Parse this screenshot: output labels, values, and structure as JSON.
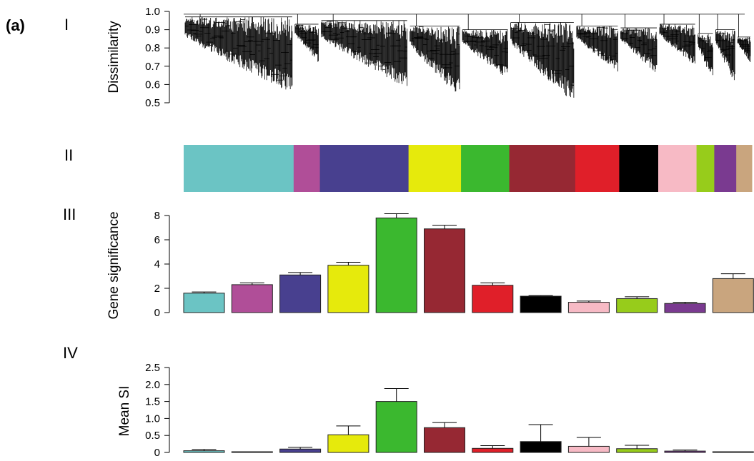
{
  "figure_label": "(a)",
  "panel_labels": [
    "I",
    "II",
    "III",
    "IV"
  ],
  "module_colors": [
    "#6bc4c4",
    "#b04e98",
    "#48408f",
    "#e6ea0c",
    "#3bb82f",
    "#962833",
    "#e01f29",
    "#000000",
    "#f7bac5",
    "#97cc1b",
    "#7a3a90",
    "#c9a57e"
  ],
  "chart_data": [
    {
      "type": "dendrogram",
      "panel": "I",
      "ylabel": "Dissimilarity",
      "ylim": [
        0.5,
        1.0
      ],
      "yticks": [
        "0.5",
        "0.6",
        "0.7",
        "0.8",
        "0.9",
        "1.0"
      ],
      "clusters": [
        {
          "color": "#6bc4c4",
          "merge_height": 0.97,
          "min_leaf": 0.55
        },
        {
          "color": "#b04e98",
          "merge_height": 0.93,
          "min_leaf": 0.72
        },
        {
          "color": "#48408f",
          "merge_height": 0.95,
          "min_leaf": 0.58
        },
        {
          "color": "#e6ea0c",
          "merge_height": 0.92,
          "min_leaf": 0.53
        },
        {
          "color": "#3bb82f",
          "merge_height": 0.9,
          "min_leaf": 0.63
        },
        {
          "color": "#962833",
          "merge_height": 0.94,
          "min_leaf": 0.5
        },
        {
          "color": "#e01f29",
          "merge_height": 0.92,
          "min_leaf": 0.67
        },
        {
          "color": "#000000",
          "merge_height": 0.91,
          "min_leaf": 0.66
        },
        {
          "color": "#f7bac5",
          "merge_height": 0.93,
          "min_leaf": 0.7
        },
        {
          "color": "#97cc1b",
          "merge_height": 0.88,
          "min_leaf": 0.62
        },
        {
          "color": "#7a3a90",
          "merge_height": 0.9,
          "min_leaf": 0.61
        },
        {
          "color": "#c9a57e",
          "merge_height": 0.86,
          "min_leaf": 0.72
        }
      ]
    },
    {
      "type": "color_strip",
      "panel": "II",
      "segments": [
        {
          "color": "#6bc4c4",
          "size": 155
        },
        {
          "color": "#b04e98",
          "size": 37
        },
        {
          "color": "#48408f",
          "size": 125
        },
        {
          "color": "#e6ea0c",
          "size": 74
        },
        {
          "color": "#3bb82f",
          "size": 68
        },
        {
          "color": "#962833",
          "size": 93
        },
        {
          "color": "#e01f29",
          "size": 62
        },
        {
          "color": "#000000",
          "size": 55
        },
        {
          "color": "#f7bac5",
          "size": 54
        },
        {
          "color": "#97cc1b",
          "size": 25
        },
        {
          "color": "#7a3a90",
          "size": 31
        },
        {
          "color": "#c9a57e",
          "size": 22
        }
      ]
    },
    {
      "type": "bar",
      "panel": "III",
      "ylabel": "Gene significance",
      "ylim": [
        0,
        8
      ],
      "yticks": [
        "0",
        "2",
        "4",
        "6",
        "8"
      ],
      "series": [
        {
          "values": [
            1.6,
            2.3,
            3.1,
            3.9,
            7.8,
            6.9,
            2.25,
            1.35,
            0.85,
            1.15,
            0.75,
            2.8
          ],
          "errors": [
            0.1,
            0.15,
            0.2,
            0.25,
            0.35,
            0.3,
            0.2,
            0.05,
            0.1,
            0.15,
            0.1,
            0.4
          ]
        }
      ]
    },
    {
      "type": "bar",
      "panel": "IV",
      "ylabel": "Mean SI",
      "ylim": [
        0,
        2.5
      ],
      "yticks": [
        "0",
        "0.5",
        "1.0",
        "1.5",
        "2.0",
        "2.5"
      ],
      "series": [
        {
          "values": [
            0.05,
            0.0,
            0.1,
            0.52,
            1.5,
            0.73,
            0.12,
            0.32,
            0.18,
            0.11,
            0.04,
            0.0
          ],
          "errors": [
            0.04,
            0.0,
            0.05,
            0.26,
            0.38,
            0.15,
            0.08,
            0.5,
            0.26,
            0.1,
            0.03,
            0.0
          ]
        }
      ]
    }
  ]
}
